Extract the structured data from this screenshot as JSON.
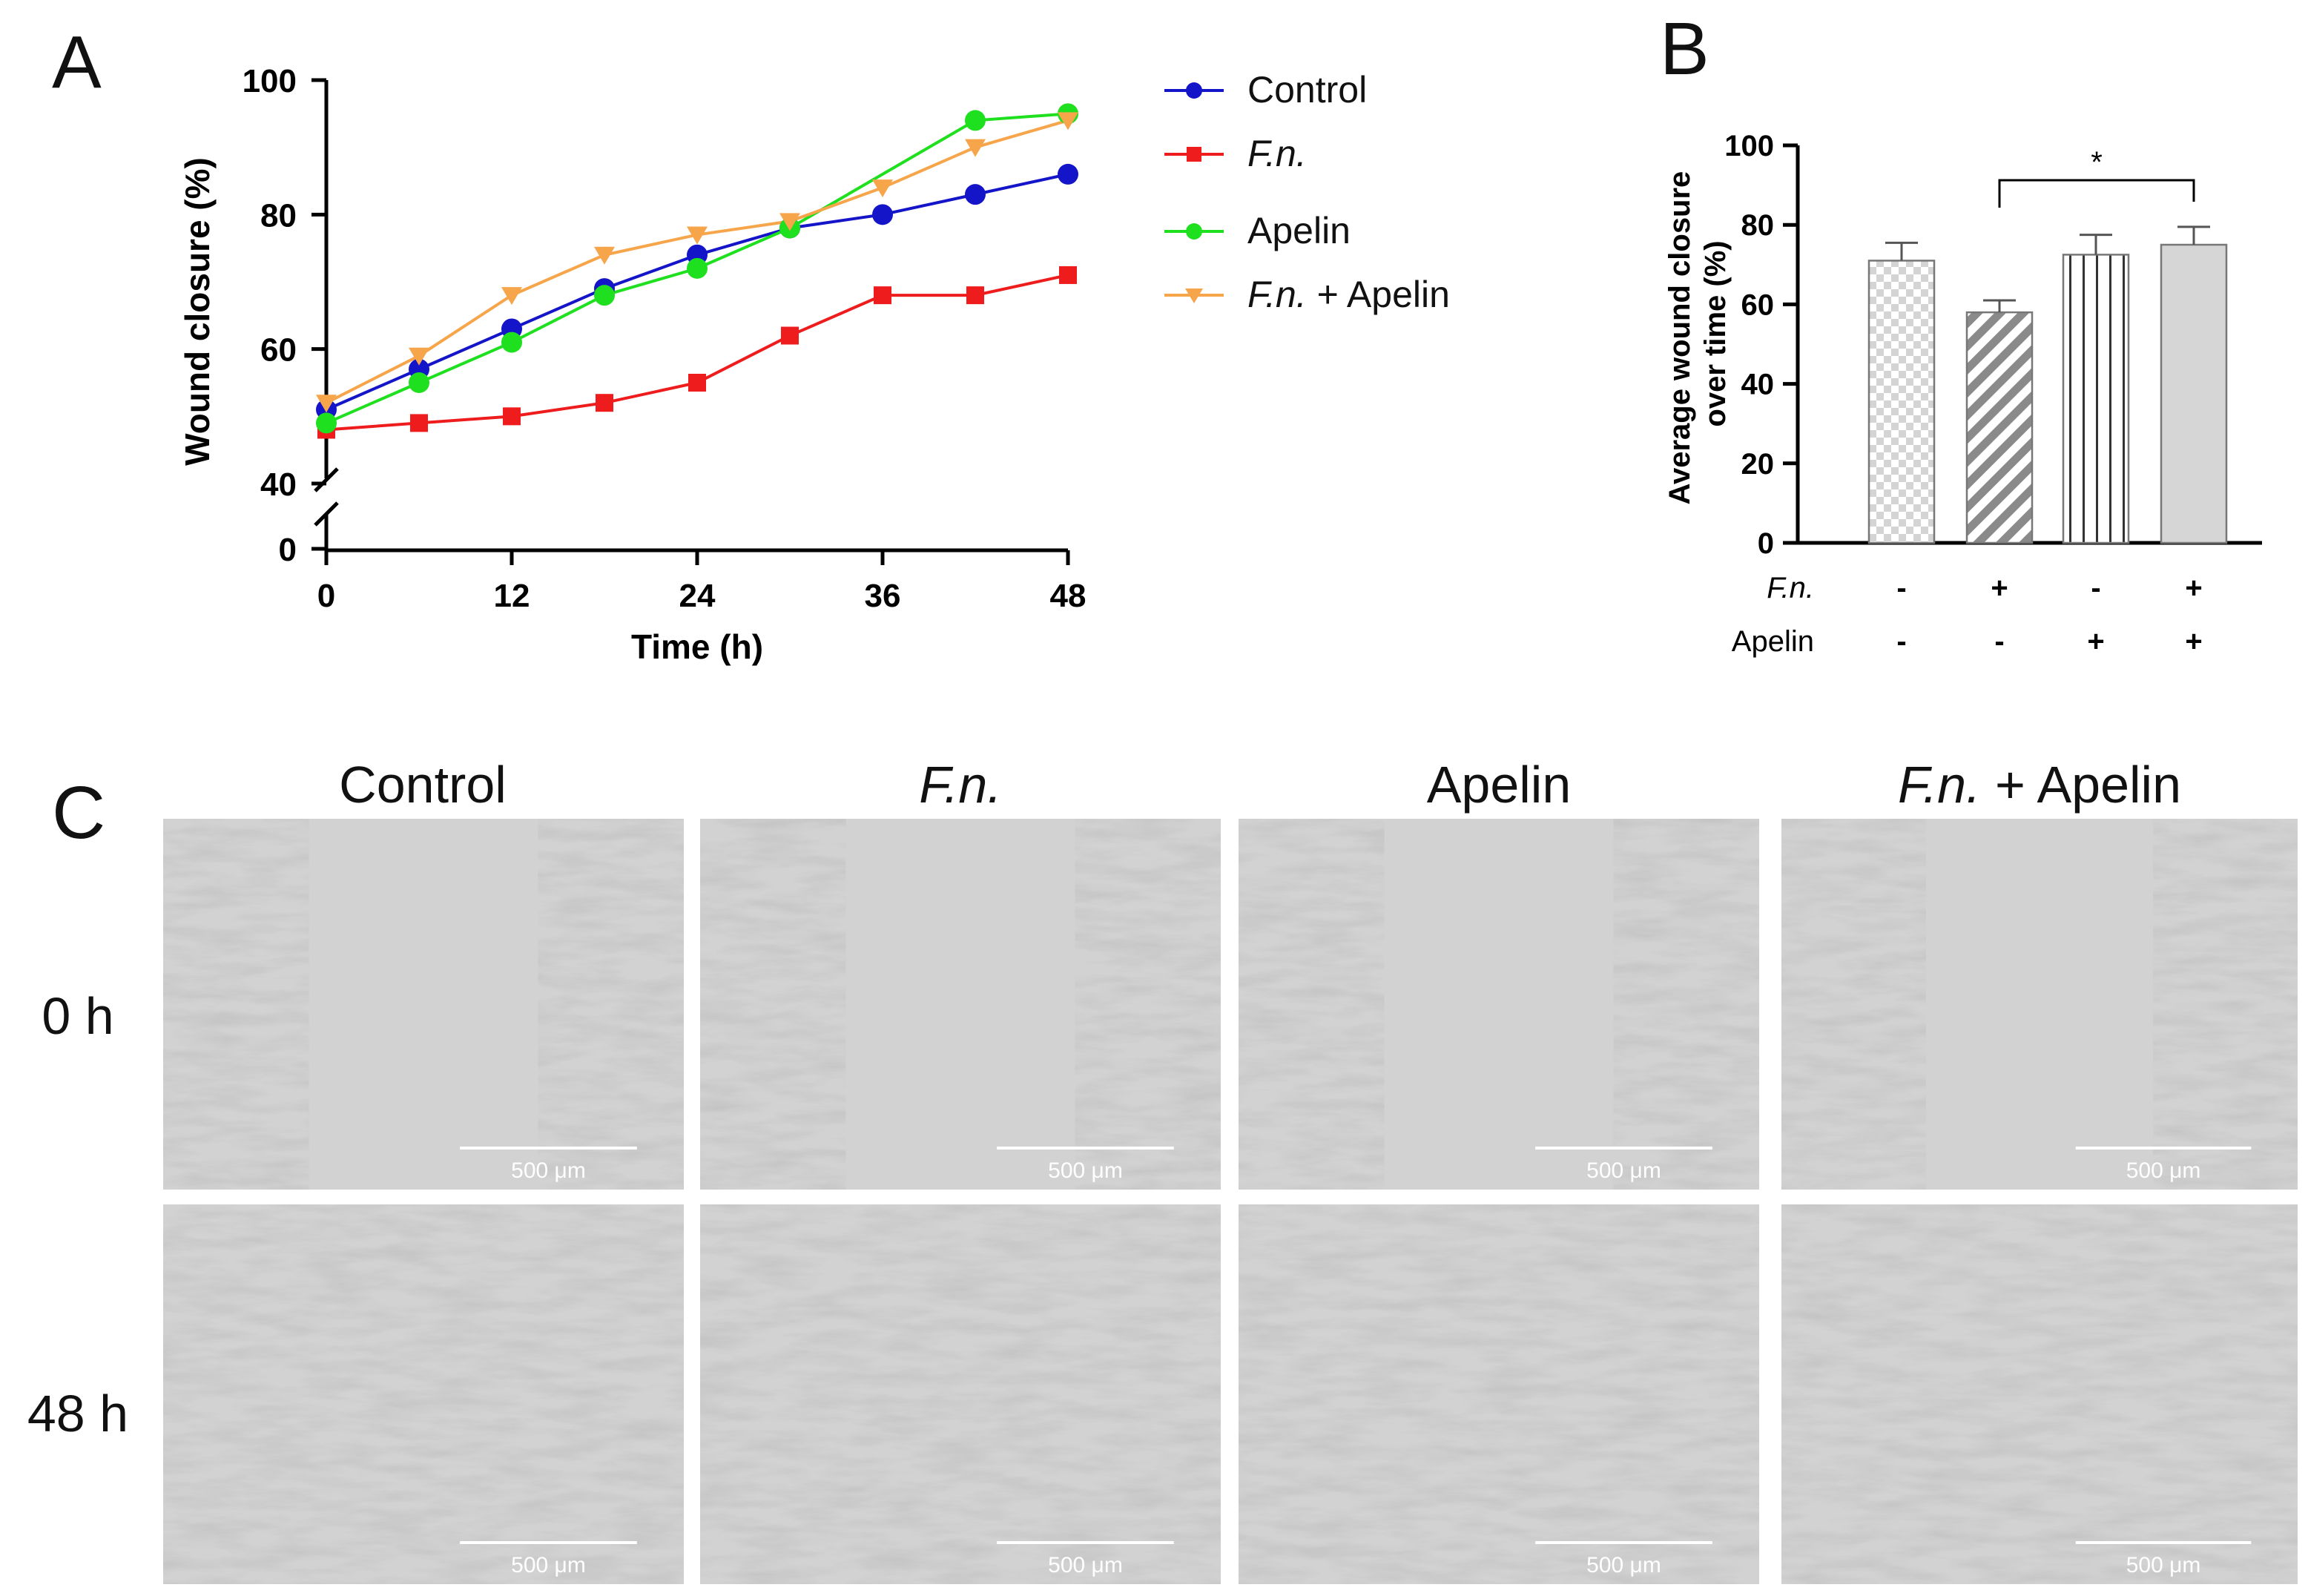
{
  "panels": {
    "A": "A",
    "B": "B",
    "C": "C"
  },
  "colors": {
    "control": "#1414c8",
    "fn": "#ee1c1c",
    "apelin": "#1ee01e",
    "fn_apelin": "#f7a54a"
  },
  "chart_data": [
    {
      "type": "line",
      "xlabel": "Time (h)",
      "ylabel": "Wound closure (%)",
      "x_ticks": [
        0,
        12,
        24,
        36,
        48
      ],
      "y_ticks": [
        40,
        60,
        80,
        100
      ],
      "y_break_tick": 0,
      "xlim": [
        0,
        48
      ],
      "ylim": [
        40,
        100
      ],
      "axis_break": true,
      "legend_position": "right",
      "x": [
        0,
        6,
        12,
        18,
        24,
        30,
        36,
        42,
        48
      ],
      "series": [
        {
          "name": "Control",
          "values": [
            51,
            57,
            63,
            69,
            74,
            78,
            80,
            83,
            86
          ]
        },
        {
          "name": "F.n.",
          "values": [
            48,
            49,
            50,
            52,
            55,
            62,
            68,
            68,
            71
          ]
        },
        {
          "name": "Apelin",
          "values": [
            49,
            55,
            61,
            68,
            72,
            78,
            null,
            94,
            95
          ]
        },
        {
          "name": "F.n. + Apelin",
          "values": [
            52,
            59,
            68,
            74,
            77,
            79,
            84,
            90,
            94
          ]
        }
      ]
    },
    {
      "type": "bar",
      "ylabel_line1": "Average wound closure",
      "ylabel_line2": "over time (%)",
      "ylim": [
        0,
        100
      ],
      "y_ticks": [
        0,
        20,
        40,
        60,
        80,
        100
      ],
      "categories": [
        "Control",
        "F.n.",
        "Apelin",
        "F.n. + Apelin"
      ],
      "values": [
        71,
        58,
        72.5,
        75
      ],
      "errors": [
        4.5,
        3,
        5,
        4.5
      ],
      "significance": {
        "from": 1,
        "to": 3,
        "label": "*"
      },
      "condition_table": {
        "rows": [
          {
            "label": "F.n.",
            "marks": [
              "-",
              "+",
              "-",
              "+"
            ]
          },
          {
            "label": "Apelin",
            "marks": [
              "-",
              "-",
              "+",
              "+"
            ]
          }
        ]
      }
    }
  ],
  "micrographs": {
    "column_headers": [
      "Control",
      "F.n.",
      "Apelin",
      "F.n. + Apelin"
    ],
    "row_labels": [
      "0 h",
      "48 h"
    ],
    "scale_bar": "500 μm"
  }
}
